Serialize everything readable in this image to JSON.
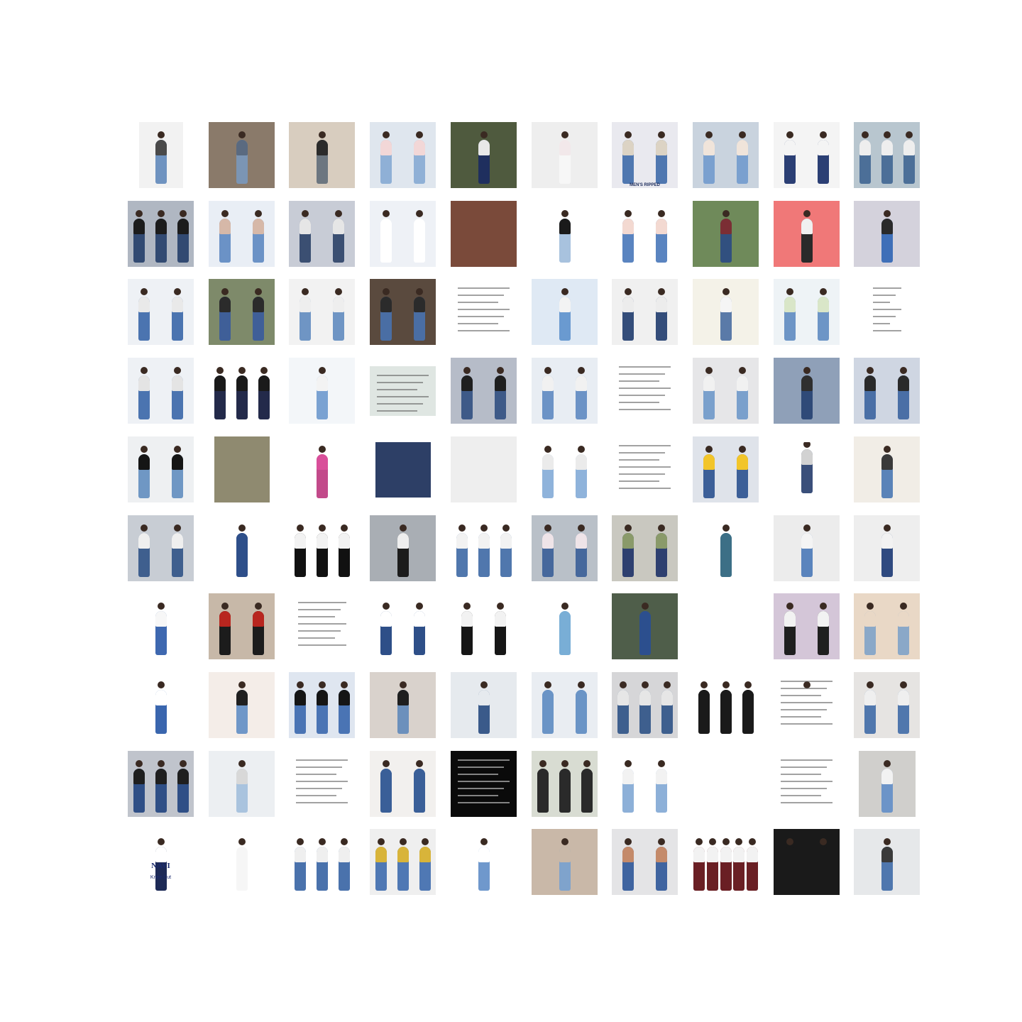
{
  "thumbnails": [
    {
      "bg": "#f2f2f2",
      "jeans": "#6f93c0",
      "top": "#4a4a4a",
      "w": 62,
      "figs": 1
    },
    {
      "bg": "#8a7a6a",
      "jeans": "#7b95b4",
      "top": "#5a6a80",
      "figs": 1
    },
    {
      "bg": "#d8cdbf",
      "jeans": "#6c7680",
      "top": "#2b2b2b",
      "figs": 1
    },
    {
      "bg": "#dfe6ee",
      "jeans": "#8fb0d6",
      "top": "#f2d7d7",
      "figs": 2
    },
    {
      "bg": "#4f5a3e",
      "jeans": "#1f2f5e",
      "top": "#e8e8e8",
      "figs": 1
    },
    {
      "bg": "#eeeeee",
      "jeans": "#f7f7f7",
      "top": "#f2e8ea",
      "figs": 1
    },
    {
      "bg": "#e9e9ef",
      "jeans": "#4f77b0",
      "top": "#dcd3c4",
      "figs": 2,
      "cap": "MEN'S RIPPED",
      "capStyle": "dark"
    },
    {
      "bg": "#c9d3de",
      "jeans": "#7aa0cf",
      "top": "#f0e4da",
      "figs": 2
    },
    {
      "bg": "#f4f4f4",
      "jeans": "#2b3f74",
      "top": "#f4f4f4",
      "figs": 2
    },
    {
      "bg": "#b8c6cf",
      "jeans": "#4c6f98",
      "top": "#eeeeee",
      "figs": 3
    },
    {
      "bg": "#b0b7c2",
      "jeans": "#324a72",
      "top": "#1c1c1c",
      "figs": 3
    },
    {
      "bg": "#e9eef5",
      "jeans": "#6b92c6",
      "top": "#d6b8a8",
      "figs": 2
    },
    {
      "bg": "#c8ccd6",
      "jeans": "#3b4f72",
      "top": "#e6e6e6",
      "figs": 2
    },
    {
      "bg": "#eef1f6",
      "jeans": "#ffffff",
      "top": "#ffffff",
      "figs": 2
    },
    {
      "bg": "#7a4a3a",
      "jeans": "#151515",
      "top": "#151515",
      "figs": 0
    },
    {
      "bg": "#ffffff",
      "jeans": "#a8c2de",
      "top": "#1a1a1a",
      "figs": 1
    },
    {
      "bg": "#ffffff",
      "jeans": "#5a84c0",
      "top": "#f3d9d1",
      "figs": 2
    },
    {
      "bg": "#6f8a5a",
      "jeans": "#31507f",
      "top": "#7b2e34",
      "figs": 1
    },
    {
      "bg": "#f07878",
      "jeans": "#2a2a2a",
      "top": "#f0f0f0",
      "figs": 1
    },
    {
      "bg": "#d4d2dc",
      "jeans": "#3f6fb8",
      "top": "#2a2a2a",
      "figs": 1
    },
    {
      "bg": "#eef1f5",
      "jeans": "#4b74b0",
      "top": "#e9e9e9",
      "figs": 2
    },
    {
      "bg": "#7e8a6a",
      "jeans": "#3f5f98",
      "top": "#2b2b2b",
      "figs": 2
    },
    {
      "bg": "#f2f2f2",
      "jeans": "#6f95c4",
      "top": "#eeeeee",
      "figs": 2
    },
    {
      "bg": "#5a4a3e",
      "jeans": "#4a6ea4",
      "top": "#2b2b2b",
      "figs": 2
    },
    {
      "bg": "#ffffff",
      "jeans": "#ffffff",
      "top": "#ffffff",
      "figs": 0,
      "text": true
    },
    {
      "bg": "#dfe9f4",
      "jeans": "#6a9ad0",
      "top": "#f3f3f3",
      "figs": 1
    },
    {
      "bg": "#f0f0f0",
      "jeans": "#344d7a",
      "top": "#ececec",
      "figs": 2
    },
    {
      "bg": "#f4f2e8",
      "jeans": "#5a7aa8",
      "top": "#f5f5f5",
      "figs": 1
    },
    {
      "bg": "#eef3f6",
      "jeans": "#6d95c6",
      "top": "#d9e6c8",
      "figs": 2
    },
    {
      "bg": "#ffffff",
      "jeans": "#ffffff",
      "top": "#ffffff",
      "figs": 0,
      "text": true,
      "w": 60
    },
    {
      "bg": "#eef1f5",
      "jeans": "#4b74b0",
      "top": "#e4e4e4",
      "figs": 2
    },
    {
      "bg": "#ffffff",
      "jeans": "#232a4a",
      "top": "#1a1a1a",
      "figs": 3
    },
    {
      "bg": "#f3f6f9",
      "jeans": "#7aa2d2",
      "top": "#f3f3f3",
      "figs": 1
    },
    {
      "bg": "#dfe6e2",
      "jeans": "#dfe6e2",
      "top": "#dfe6e2",
      "figs": 0,
      "text": true,
      "h": 70
    },
    {
      "bg": "#b6bcc8",
      "jeans": "#3e5a88",
      "top": "#1f1f1f",
      "figs": 2
    },
    {
      "bg": "#e8edf3",
      "jeans": "#6c93c6",
      "top": "#f1f1f1",
      "figs": 2
    },
    {
      "bg": "#ffffff",
      "jeans": "#ffffff",
      "top": "#ffffff",
      "figs": 0,
      "text": true
    },
    {
      "bg": "#e6e6e8",
      "jeans": "#7aa0cc",
      "top": "#f1f1f1",
      "figs": 2
    },
    {
      "bg": "#8fa0b8",
      "jeans": "#2f4a78",
      "top": "#2f2f2f",
      "figs": 1
    },
    {
      "bg": "#cfd6e2",
      "jeans": "#4a6fa6",
      "top": "#2a2a2a",
      "figs": 2
    },
    {
      "bg": "#eef0f2",
      "jeans": "#6f97c4",
      "top": "#151515",
      "figs": 2
    },
    {
      "bg": "#8f8a70",
      "jeans": "#9cc0e4",
      "top": "#9cc0e4",
      "figs": 0,
      "w": 78
    },
    {
      "bg": "#ffffff",
      "jeans": "#c24a8a",
      "top": "#d94f9a",
      "figs": 1
    },
    {
      "bg": "#2d3f66",
      "jeans": "#2d3f66",
      "top": "#2d3f66",
      "figs": 0,
      "w": 78,
      "h": 78
    },
    {
      "bg": "#eeeeee",
      "jeans": "#d8d8d8",
      "top": "#d8d8d8",
      "figs": 0
    },
    {
      "bg": "#ffffff",
      "jeans": "#8fb3db",
      "top": "#ebebeb",
      "figs": 2
    },
    {
      "bg": "#ffffff",
      "jeans": "#ffffff",
      "top": "#ffffff",
      "figs": 0,
      "text": true
    },
    {
      "bg": "#dfe3ea",
      "jeans": "#3c5f98",
      "top": "#f2c52a",
      "figs": 2
    },
    {
      "bg": "#ffffff",
      "jeans": "#3a4f7a",
      "top": "#d2d2d2",
      "figs": 1,
      "h": 78
    },
    {
      "bg": "#f1ede6",
      "jeans": "#5a83b8",
      "top": "#3a3a3a",
      "figs": 1
    },
    {
      "bg": "#c8cdd4",
      "jeans": "#3f5f8e",
      "top": "#efefef",
      "figs": 2
    },
    {
      "bg": "#ffffff",
      "jeans": "#2e4f8a",
      "top": "#2e4f8a",
      "figs": 1,
      "w": 78
    },
    {
      "bg": "#ffffff",
      "jeans": "#111111",
      "top": "#f2f2f2",
      "figs": 3
    },
    {
      "bg": "#a9aeb4",
      "jeans": "#1c1c1c",
      "top": "#eeeeee",
      "figs": 1
    },
    {
      "bg": "#ffffff",
      "jeans": "#5077ad",
      "top": "#f2f2f2",
      "figs": 3
    },
    {
      "bg": "#b9c0c8",
      "jeans": "#46689c",
      "top": "#efe4e8",
      "figs": 2
    },
    {
      "bg": "#c9c8c0",
      "jeans": "#2e4070",
      "top": "#8a9a6a",
      "figs": 2
    },
    {
      "bg": "#ffffff",
      "jeans": "#3c6f86",
      "top": "#3c6f86",
      "figs": 1
    },
    {
      "bg": "#ececec",
      "jeans": "#5a84bd",
      "top": "#f4f4f4",
      "figs": 1
    },
    {
      "bg": "#eeeeee",
      "jeans": "#2f4a80",
      "top": "#f2f2f2",
      "figs": 1
    },
    {
      "bg": "#ffffff",
      "jeans": "#3e68b0",
      "top": "#f7f7f7",
      "figs": 1
    },
    {
      "bg": "#c7b8a8",
      "jeans": "#1c1c1c",
      "top": "#b8261f",
      "figs": 2
    },
    {
      "bg": "#ffffff",
      "jeans": "#ffffff",
      "top": "#ffffff",
      "figs": 0,
      "text": true,
      "w": 88
    },
    {
      "bg": "#ffffff",
      "jeans": "#2e4f88",
      "top": "#ffffff",
      "figs": 2
    },
    {
      "bg": "#ffffff",
      "jeans": "#161616",
      "top": "#f2f2f2",
      "figs": 2
    },
    {
      "bg": "#ffffff",
      "jeans": "#79aed6",
      "top": "#79aed6",
      "figs": 1
    },
    {
      "bg": "#4f5e4a",
      "jeans": "#2c4f8e",
      "top": "#2c4f8e",
      "figs": 1
    },
    {
      "bg": "#ffffff",
      "jeans": "#3f65a8",
      "top": "#3f65a8",
      "figs": 0
    },
    {
      "bg": "#d4c6d8",
      "jeans": "#1f1f1f",
      "top": "#f2f2f2",
      "figs": 2
    },
    {
      "bg": "#e9d8c6",
      "jeans": "#8aa8c8",
      "top": "#e9d8c6",
      "figs": 2
    },
    {
      "bg": "#ffffff",
      "jeans": "#3a66ae",
      "top": "#ffffff",
      "figs": 1
    },
    {
      "bg": "#f4ede8",
      "jeans": "#6f97c8",
      "top": "#202020",
      "figs": 1
    },
    {
      "bg": "#dfe6f0",
      "jeans": "#4a74b4",
      "top": "#151515",
      "figs": 3
    },
    {
      "bg": "#d9d2cc",
      "jeans": "#6c90bc",
      "top": "#1f1f1f",
      "figs": 1
    },
    {
      "bg": "#e6eaee",
      "jeans": "#3a5a8a",
      "top": "#e6eaee",
      "figs": 1
    },
    {
      "bg": "#e9edf2",
      "jeans": "#6a94c6",
      "top": "#6a94c6",
      "figs": 2
    },
    {
      "bg": "#d6d6d8",
      "jeans": "#3e5f8e",
      "top": "#e6e6e6",
      "figs": 3
    },
    {
      "bg": "#ffffff",
      "jeans": "#1a1a1a",
      "top": "#1a1a1a",
      "figs": 3
    },
    {
      "bg": "#ffffff",
      "jeans": "#ffffff",
      "top": "#ffffff",
      "figs": 1,
      "text": true
    },
    {
      "bg": "#e6e4e2",
      "jeans": "#5077ad",
      "top": "#efefef",
      "figs": 2
    },
    {
      "bg": "#c0c4cc",
      "jeans": "#2f4f86",
      "top": "#1f1f1f",
      "figs": 3
    },
    {
      "bg": "#eceff2",
      "jeans": "#a9c3de",
      "top": "#d8d8d8",
      "figs": 1
    },
    {
      "bg": "#ffffff",
      "jeans": "#ffffff",
      "top": "#ffffff",
      "figs": 0,
      "text": true
    },
    {
      "bg": "#f2f0ee",
      "jeans": "#3a5f98",
      "top": "#3a5f98",
      "figs": 2
    },
    {
      "bg": "#0a0a0a",
      "jeans": "#0a0a0a",
      "top": "#0a0a0a",
      "figs": 0,
      "text": true,
      "dark": true
    },
    {
      "bg": "#d8dcd2",
      "jeans": "#2a2a2a",
      "top": "#2a2a2a",
      "figs": 3
    },
    {
      "bg": "#ffffff",
      "jeans": "#8db0d8",
      "top": "#f2f2f2",
      "figs": 2
    },
    {
      "bg": "#ffffff",
      "jeans": "#5c2328",
      "top": "#5c2328",
      "figs": 0
    },
    {
      "bg": "#ffffff",
      "jeans": "#ffffff",
      "top": "#ffffff",
      "figs": 0,
      "text": true
    },
    {
      "bg": "#d0cfcc",
      "jeans": "#6c94c8",
      "top": "#f2f2f2",
      "figs": 1,
      "w": 80
    },
    {
      "bg": "#ffffff",
      "jeans": "#1d2a56",
      "top": "#ffffff",
      "figs": 1,
      "cap": "NAVI",
      "capStyle": "mid",
      "cap2": "Knee Cut",
      "cap2Style": "mid2"
    },
    {
      "bg": "#ffffff",
      "jeans": "#f6f6f6",
      "top": "#f6f6f6",
      "figs": 1,
      "w": 78
    },
    {
      "bg": "#ffffff",
      "jeans": "#4a72ac",
      "top": "#efefef",
      "figs": 3
    },
    {
      "bg": "#efefef",
      "jeans": "#4f78b4",
      "top": "#d8b43a",
      "figs": 3
    },
    {
      "bg": "#ffffff",
      "jeans": "#6f98cc",
      "top": "#ffffff",
      "figs": 1
    },
    {
      "bg": "#c9b8a8",
      "jeans": "#7fa3cc",
      "top": "#c9b8a8",
      "figs": 1
    },
    {
      "bg": "#e4e4e6",
      "jeans": "#3f64a0",
      "top": "#c48a6a",
      "figs": 2
    },
    {
      "bg": "#ffffff",
      "jeans": "#6a1f24",
      "top": "#f2f2f2",
      "figs": 5
    },
    {
      "bg": "#1a1a1a",
      "jeans": "#1a1a1a",
      "top": "#1a1a1a",
      "figs": 2
    },
    {
      "bg": "#e6e8ea",
      "jeans": "#4f77ae",
      "top": "#3a3a3a",
      "figs": 1
    }
  ]
}
